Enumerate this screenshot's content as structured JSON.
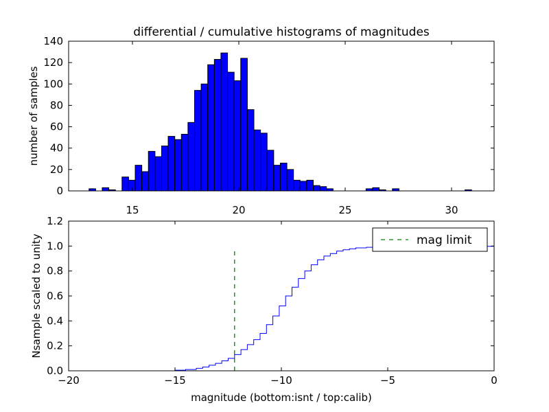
{
  "title": "differential / cumulative histograms of magnitudes",
  "colors": {
    "bar_fill": "#0000ff",
    "bar_edge": "#000000",
    "step_line": "#0000ff",
    "limit_line": "#008000"
  },
  "chart_data": [
    {
      "type": "bar",
      "subtype": "histogram",
      "title": "differential / cumulative histograms of magnitudes",
      "xlabel": "",
      "ylabel": "number of samples",
      "xlim": [
        12,
        32
      ],
      "ylim": [
        0,
        140
      ],
      "xticks": [
        15,
        20,
        25,
        30
      ],
      "xtick_labels": [
        "15",
        "20",
        "25",
        "30"
      ],
      "xticks_position": "bottom",
      "yticks": [
        0,
        20,
        40,
        60,
        80,
        100,
        120,
        140
      ],
      "ytick_labels": [
        "0",
        "20",
        "40",
        "60",
        "80",
        "100",
        "120",
        "140"
      ],
      "bin_width": 0.31,
      "bin_start": 12.65,
      "values": [
        0,
        2,
        0,
        3,
        1,
        0,
        13,
        10,
        24,
        18,
        37,
        32,
        42,
        51,
        48,
        53,
        64,
        94,
        100,
        118,
        123,
        129,
        111,
        103,
        124,
        76,
        57,
        54,
        38,
        24,
        26,
        20,
        10,
        9,
        10,
        5,
        4,
        2,
        0,
        0,
        0,
        0,
        0,
        2,
        3,
        1,
        0,
        2,
        0,
        0,
        0,
        0,
        0,
        0,
        0,
        0,
        0,
        0,
        1,
        0,
        0,
        0,
        0,
        0
      ]
    },
    {
      "type": "line",
      "subtype": "step",
      "series": [
        {
          "name": "cumulative",
          "x": [
            -20,
            -15,
            -14.5,
            -14,
            -13.7,
            -13.4,
            -13.1,
            -12.8,
            -12.5,
            -12.2,
            -11.9,
            -11.6,
            -11.3,
            -11,
            -10.7,
            -10.4,
            -10.1,
            -9.8,
            -9.5,
            -9.2,
            -8.9,
            -8.6,
            -8.3,
            -8,
            -7.7,
            -7.4,
            -7.1,
            -6.8,
            -6.5,
            -6,
            -5.5,
            -5,
            -0.05
          ],
          "values": [
            0,
            0.005,
            0.01,
            0.02,
            0.03,
            0.045,
            0.06,
            0.08,
            0.1,
            0.13,
            0.17,
            0.21,
            0.25,
            0.3,
            0.37,
            0.44,
            0.52,
            0.6,
            0.67,
            0.74,
            0.8,
            0.85,
            0.89,
            0.92,
            0.94,
            0.96,
            0.97,
            0.978,
            0.985,
            0.99,
            0.995,
            0.998,
            1.0
          ]
        },
        {
          "name": "mag limit",
          "x": [
            -12.2,
            -12.2
          ],
          "values": [
            0,
            0.97
          ]
        }
      ],
      "xlabel": "magnitude (bottom:isnt / top:calib)",
      "ylabel": "Nsample scaled to unity",
      "xlim": [
        -20,
        0
      ],
      "ylim": [
        0,
        1.2
      ],
      "xticks": [
        -20,
        -15,
        -10,
        -5,
        0
      ],
      "xtick_labels": [
        "−20",
        "−15",
        "−10",
        "−5",
        "0"
      ],
      "yticks": [
        0,
        0.2,
        0.4,
        0.6,
        0.8,
        1.0,
        1.2
      ],
      "ytick_labels": [
        "0.0",
        "0.2",
        "0.4",
        "0.6",
        "0.8",
        "1.0",
        "1.2"
      ],
      "legend": {
        "position": "top-right",
        "entries": [
          "mag limit"
        ]
      }
    }
  ]
}
